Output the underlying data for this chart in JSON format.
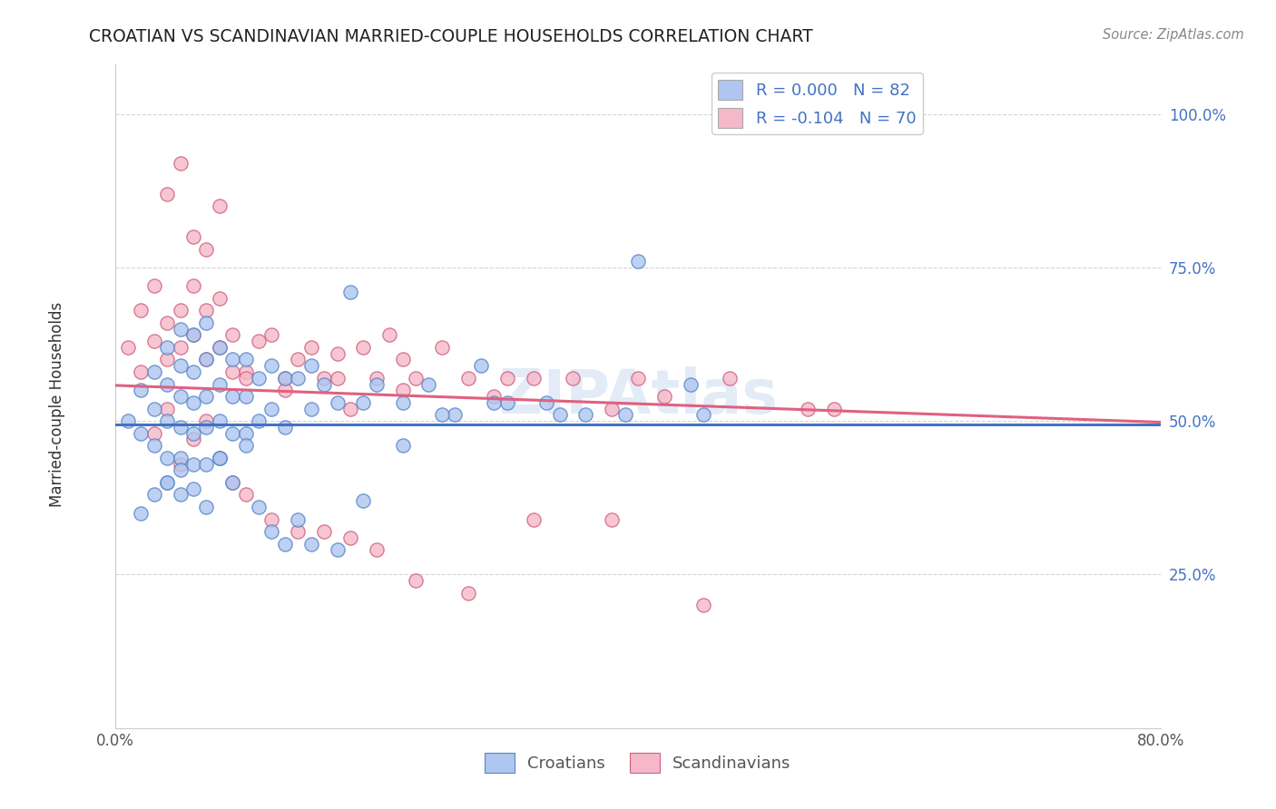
{
  "title": "CROATIAN VS SCANDINAVIAN MARRIED-COUPLE HOUSEHOLDS CORRELATION CHART",
  "source": "Source: ZipAtlas.com",
  "ylabel": "Married-couple Households",
  "ytick_labels": [
    "25.0%",
    "50.0%",
    "75.0%",
    "100.0%"
  ],
  "ytick_values": [
    0.25,
    0.5,
    0.75,
    1.0
  ],
  "xlim": [
    0.0,
    0.8
  ],
  "ylim": [
    0.0,
    1.08
  ],
  "legend": {
    "croatian": {
      "R": "0.000",
      "N": "82",
      "color": "#aec6f0"
    },
    "scandinavian": {
      "R": "-0.104",
      "N": "70",
      "color": "#f5b8c8"
    }
  },
  "trend_croatian": {
    "slope": 0.0,
    "intercept": 0.495,
    "color": "#4472c4",
    "linestyle": "-"
  },
  "trend_scandinavian": {
    "slope": -0.075,
    "intercept": 0.558,
    "color": "#e06080",
    "linestyle": "-"
  },
  "watermark": "ZIPAtlas",
  "background": "#ffffff",
  "grid_color": "#d0d0d0",
  "croatian_scatter_color": "#aec6f0",
  "croatian_scatter_edge": "#5585c8",
  "scandinavian_scatter_color": "#f5b8c8",
  "scandinavian_scatter_edge": "#d06080",
  "croatian_x": [
    0.01,
    0.02,
    0.02,
    0.03,
    0.03,
    0.03,
    0.04,
    0.04,
    0.04,
    0.04,
    0.04,
    0.05,
    0.05,
    0.05,
    0.05,
    0.05,
    0.05,
    0.06,
    0.06,
    0.06,
    0.06,
    0.06,
    0.07,
    0.07,
    0.07,
    0.07,
    0.07,
    0.08,
    0.08,
    0.08,
    0.08,
    0.09,
    0.09,
    0.09,
    0.1,
    0.1,
    0.1,
    0.11,
    0.11,
    0.12,
    0.12,
    0.13,
    0.13,
    0.14,
    0.15,
    0.15,
    0.16,
    0.17,
    0.18,
    0.19,
    0.2,
    0.22,
    0.24,
    0.26,
    0.28,
    0.3,
    0.33,
    0.36,
    0.4,
    0.44,
    0.02,
    0.03,
    0.04,
    0.05,
    0.06,
    0.07,
    0.08,
    0.09,
    0.1,
    0.11,
    0.12,
    0.13,
    0.14,
    0.15,
    0.17,
    0.19,
    0.22,
    0.25,
    0.29,
    0.34,
    0.39,
    0.45
  ],
  "croatian_y": [
    0.5,
    0.55,
    0.48,
    0.58,
    0.52,
    0.46,
    0.62,
    0.56,
    0.5,
    0.44,
    0.4,
    0.65,
    0.59,
    0.54,
    0.49,
    0.44,
    0.38,
    0.64,
    0.58,
    0.53,
    0.48,
    0.43,
    0.66,
    0.6,
    0.54,
    0.49,
    0.43,
    0.62,
    0.56,
    0.5,
    0.44,
    0.6,
    0.54,
    0.48,
    0.6,
    0.54,
    0.48,
    0.57,
    0.5,
    0.59,
    0.52,
    0.57,
    0.49,
    0.57,
    0.59,
    0.52,
    0.56,
    0.53,
    0.71,
    0.53,
    0.56,
    0.53,
    0.56,
    0.51,
    0.59,
    0.53,
    0.53,
    0.51,
    0.76,
    0.56,
    0.35,
    0.38,
    0.4,
    0.42,
    0.39,
    0.36,
    0.44,
    0.4,
    0.46,
    0.36,
    0.32,
    0.3,
    0.34,
    0.3,
    0.29,
    0.37,
    0.46,
    0.51,
    0.53,
    0.51,
    0.51,
    0.51
  ],
  "scandinavian_x": [
    0.01,
    0.02,
    0.02,
    0.03,
    0.03,
    0.04,
    0.04,
    0.05,
    0.05,
    0.06,
    0.06,
    0.07,
    0.07,
    0.08,
    0.08,
    0.09,
    0.1,
    0.11,
    0.12,
    0.13,
    0.14,
    0.15,
    0.16,
    0.17,
    0.18,
    0.19,
    0.2,
    0.21,
    0.22,
    0.23,
    0.25,
    0.27,
    0.29,
    0.32,
    0.35,
    0.38,
    0.42,
    0.47,
    0.53,
    0.03,
    0.04,
    0.05,
    0.06,
    0.07,
    0.08,
    0.09,
    0.1,
    0.12,
    0.14,
    0.16,
    0.18,
    0.2,
    0.23,
    0.27,
    0.32,
    0.38,
    0.45,
    0.04,
    0.05,
    0.06,
    0.07,
    0.08,
    0.09,
    0.1,
    0.13,
    0.17,
    0.22,
    0.3,
    0.4,
    0.55
  ],
  "scandinavian_y": [
    0.62,
    0.58,
    0.68,
    0.63,
    0.72,
    0.66,
    0.6,
    0.68,
    0.62,
    0.72,
    0.64,
    0.68,
    0.6,
    0.7,
    0.62,
    0.64,
    0.58,
    0.63,
    0.64,
    0.57,
    0.6,
    0.62,
    0.57,
    0.57,
    0.52,
    0.62,
    0.57,
    0.64,
    0.6,
    0.57,
    0.62,
    0.57,
    0.54,
    0.57,
    0.57,
    0.52,
    0.54,
    0.57,
    0.52,
    0.48,
    0.52,
    0.43,
    0.47,
    0.5,
    0.44,
    0.4,
    0.38,
    0.34,
    0.32,
    0.32,
    0.31,
    0.29,
    0.24,
    0.22,
    0.34,
    0.34,
    0.2,
    0.87,
    0.92,
    0.8,
    0.78,
    0.85,
    0.58,
    0.57,
    0.55,
    0.61,
    0.55,
    0.57,
    0.57,
    0.52
  ]
}
